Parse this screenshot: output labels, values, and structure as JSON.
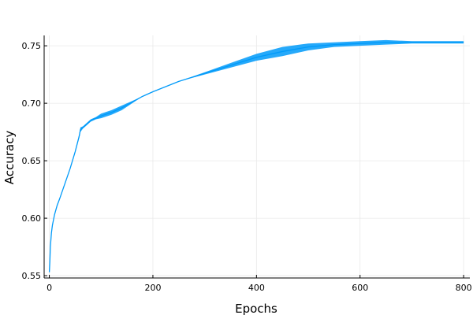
{
  "chart_data": {
    "type": "line",
    "title": "",
    "xlabel": "Epochs",
    "ylabel": "Accuracy",
    "xlim": [
      -10,
      812
    ],
    "ylim": [
      0.548,
      0.759
    ],
    "xticks": [
      0,
      200,
      400,
      600,
      800
    ],
    "yticks": [
      0.55,
      0.6,
      0.65,
      0.7,
      0.75
    ],
    "xtick_labels": [
      "0",
      "200",
      "400",
      "600",
      "800"
    ],
    "ytick_labels": [
      "0.55",
      "0.60",
      "0.65",
      "0.70",
      "0.75"
    ],
    "grid": true,
    "legend": "none",
    "color": "#009af9",
    "series": [
      {
        "x": [
          0,
          1,
          2,
          4,
          6,
          10,
          15,
          20,
          30,
          40,
          50,
          58,
          60,
          65,
          70,
          80,
          90,
          100,
          120,
          140,
          160,
          180,
          200,
          250,
          300,
          350,
          400,
          450,
          500,
          550,
          600,
          650,
          700,
          750,
          800
        ],
        "y": [
          0.553,
          0.562,
          0.575,
          0.587,
          0.594,
          0.603,
          0.611,
          0.617,
          0.63,
          0.643,
          0.658,
          0.672,
          0.677,
          0.679,
          0.681,
          0.685,
          0.687,
          0.689,
          0.692,
          0.696,
          0.701,
          0.706,
          0.71,
          0.719,
          0.726,
          0.733,
          0.74,
          0.745,
          0.749,
          0.751,
          0.752,
          0.753,
          0.753,
          0.753,
          0.753
        ],
        "spread": [
          0.0,
          0.0,
          0.0,
          0.0,
          0.0,
          0.0,
          0.0,
          0.0,
          0.0,
          0.0,
          0.0,
          0.002,
          0.002,
          0.001,
          0.001,
          0.001,
          0.001,
          0.002,
          0.002,
          0.002,
          0.001,
          0.0,
          0.0,
          0.0,
          0.001,
          0.002,
          0.003,
          0.004,
          0.003,
          0.002,
          0.002,
          0.002,
          0.001,
          0.001,
          0.001
        ]
      }
    ]
  }
}
